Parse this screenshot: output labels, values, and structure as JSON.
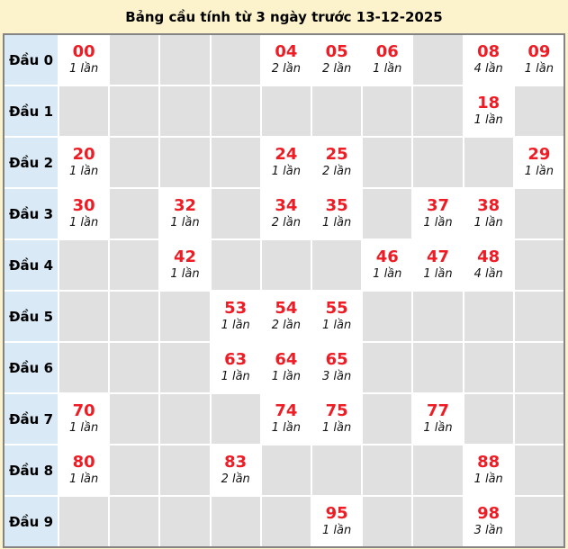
{
  "title": "Bảng cầu tính từ 3 ngày trước 13-12-2025",
  "colors": {
    "page_background": "#FCF3CC",
    "table_border": "#848484",
    "grid_line": "#FFFFFF",
    "label_cell": "#D9EAF6",
    "empty_cell": "#E0E0E0",
    "filled_cell": "#FFFFFF",
    "number_red": "#EE1C25"
  },
  "table": {
    "digit_columns": 10,
    "rows": [
      {
        "label": "Đầu 0",
        "cells": [
          {
            "number": "00",
            "times": "1 lần"
          },
          null,
          null,
          null,
          {
            "number": "04",
            "times": "2 lần"
          },
          {
            "number": "05",
            "times": "2 lần"
          },
          {
            "number": "06",
            "times": "1 lần"
          },
          null,
          {
            "number": "08",
            "times": "4 lần"
          },
          {
            "number": "09",
            "times": "1 lần"
          }
        ]
      },
      {
        "label": "Đầu 1",
        "cells": [
          null,
          null,
          null,
          null,
          null,
          null,
          null,
          null,
          {
            "number": "18",
            "times": "1 lần"
          },
          null
        ]
      },
      {
        "label": "Đầu 2",
        "cells": [
          {
            "number": "20",
            "times": "1 lần"
          },
          null,
          null,
          null,
          {
            "number": "24",
            "times": "1 lần"
          },
          {
            "number": "25",
            "times": "2 lần"
          },
          null,
          null,
          null,
          {
            "number": "29",
            "times": "1 lần"
          }
        ]
      },
      {
        "label": "Đầu 3",
        "cells": [
          {
            "number": "30",
            "times": "1 lần"
          },
          null,
          {
            "number": "32",
            "times": "1 lần"
          },
          null,
          {
            "number": "34",
            "times": "2 lần"
          },
          {
            "number": "35",
            "times": "1 lần"
          },
          null,
          {
            "number": "37",
            "times": "1 lần"
          },
          {
            "number": "38",
            "times": "1 lần"
          },
          null
        ]
      },
      {
        "label": "Đầu 4",
        "cells": [
          null,
          null,
          {
            "number": "42",
            "times": "1 lần"
          },
          null,
          null,
          null,
          {
            "number": "46",
            "times": "1 lần"
          },
          {
            "number": "47",
            "times": "1 lần"
          },
          {
            "number": "48",
            "times": "4 lần"
          },
          null
        ]
      },
      {
        "label": "Đầu 5",
        "cells": [
          null,
          null,
          null,
          {
            "number": "53",
            "times": "1 lần"
          },
          {
            "number": "54",
            "times": "2 lần"
          },
          {
            "number": "55",
            "times": "1 lần"
          },
          null,
          null,
          null,
          null
        ]
      },
      {
        "label": "Đầu 6",
        "cells": [
          null,
          null,
          null,
          {
            "number": "63",
            "times": "1 lần"
          },
          {
            "number": "64",
            "times": "1 lần"
          },
          {
            "number": "65",
            "times": "3 lần"
          },
          null,
          null,
          null,
          null
        ]
      },
      {
        "label": "Đầu 7",
        "cells": [
          {
            "number": "70",
            "times": "1 lần"
          },
          null,
          null,
          null,
          {
            "number": "74",
            "times": "1 lần"
          },
          {
            "number": "75",
            "times": "1 lần"
          },
          null,
          {
            "number": "77",
            "times": "1 lần"
          },
          null,
          null
        ]
      },
      {
        "label": "Đầu 8",
        "cells": [
          {
            "number": "80",
            "times": "1 lần"
          },
          null,
          null,
          {
            "number": "83",
            "times": "2 lần"
          },
          null,
          null,
          null,
          null,
          {
            "number": "88",
            "times": "1 lần"
          },
          null
        ]
      },
      {
        "label": "Đầu 9",
        "cells": [
          null,
          null,
          null,
          null,
          null,
          {
            "number": "95",
            "times": "1 lần"
          },
          null,
          null,
          {
            "number": "98",
            "times": "3 lần"
          },
          null
        ]
      }
    ]
  }
}
